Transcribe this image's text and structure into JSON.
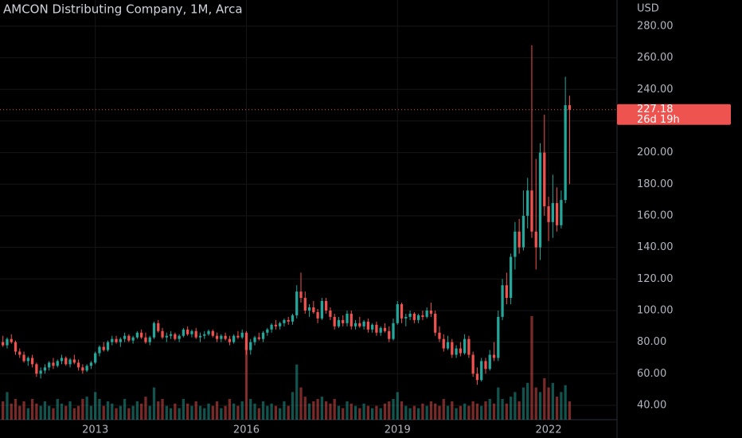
{
  "chart_data": {
    "type": "candlestick",
    "title": "AMCON Distributing Company, 1M, Arca",
    "currency": "USD",
    "countdown": "26d 19h",
    "up_color": "#26a69a",
    "down_color": "#ef5350",
    "grid": true,
    "ylim": [
      30.9,
      296.6
    ],
    "yticks": [
      {
        "value": 40,
        "label": "40.00"
      },
      {
        "value": 60,
        "label": "60.00"
      },
      {
        "value": 80,
        "label": "80.00"
      },
      {
        "value": 100,
        "label": "100.00"
      },
      {
        "value": 120,
        "label": "120.00"
      },
      {
        "value": 140,
        "label": "140.00"
      },
      {
        "value": 160,
        "label": "160.00"
      },
      {
        "value": 180,
        "label": "180.00"
      },
      {
        "value": 200,
        "label": "200.00"
      },
      {
        "value": 220,
        "label": "220.00"
      },
      {
        "value": 240,
        "label": "240.00"
      },
      {
        "value": 260,
        "label": "260.00"
      },
      {
        "value": 280,
        "label": "280.00"
      }
    ],
    "xlim": [
      0.3,
      147.3
    ],
    "xticks": [
      {
        "value": 23,
        "label": "2013"
      },
      {
        "value": 59,
        "label": "2016"
      },
      {
        "value": 95,
        "label": "2019"
      },
      {
        "value": 131,
        "label": "2022"
      }
    ],
    "candles": [
      [
        75,
        82,
        73,
        80,
        10
      ],
      [
        80,
        84,
        77,
        78,
        8
      ],
      [
        78,
        83,
        76,
        82,
        12
      ],
      [
        82,
        85,
        79,
        80,
        7
      ],
      [
        80,
        81,
        72,
        74,
        9
      ],
      [
        74,
        76,
        70,
        72,
        6
      ],
      [
        72,
        74,
        67,
        68,
        8
      ],
      [
        68,
        71,
        65,
        70,
        5
      ],
      [
        70,
        72,
        64,
        66,
        9
      ],
      [
        66,
        67,
        58,
        60,
        7
      ],
      [
        60,
        64,
        57,
        62,
        6
      ],
      [
        62,
        66,
        60,
        64,
        8
      ],
      [
        64,
        68,
        62,
        67,
        6
      ],
      [
        67,
        70,
        63,
        65,
        5
      ],
      [
        65,
        69,
        64,
        68,
        9
      ],
      [
        68,
        72,
        66,
        70,
        7
      ],
      [
        70,
        71,
        65,
        66,
        6
      ],
      [
        66,
        70,
        64,
        69,
        8
      ],
      [
        69,
        72,
        66,
        67,
        5
      ],
      [
        67,
        69,
        62,
        64,
        6
      ],
      [
        64,
        66,
        60,
        62,
        9
      ],
      [
        62,
        66,
        61,
        65,
        10
      ],
      [
        65,
        68,
        63,
        67,
        6
      ],
      [
        67,
        74,
        66,
        73,
        12
      ],
      [
        73,
        78,
        71,
        77,
        9
      ],
      [
        77,
        80,
        74,
        75,
        6
      ],
      [
        75,
        81,
        74,
        80,
        8
      ],
      [
        80,
        84,
        78,
        82,
        7
      ],
      [
        82,
        84,
        79,
        80,
        5
      ],
      [
        80,
        83,
        77,
        82,
        6
      ],
      [
        82,
        86,
        80,
        84,
        9
      ],
      [
        84,
        85,
        80,
        81,
        5
      ],
      [
        81,
        84,
        79,
        83,
        6
      ],
      [
        83,
        87,
        82,
        86,
        8
      ],
      [
        86,
        88,
        82,
        83,
        7
      ],
      [
        83,
        86,
        79,
        80,
        10
      ],
      [
        80,
        84,
        78,
        83,
        6
      ],
      [
        83,
        93,
        82,
        92,
        14
      ],
      [
        92,
        94,
        86,
        87,
        8
      ],
      [
        87,
        89,
        82,
        83,
        9
      ],
      [
        83,
        86,
        80,
        84,
        6
      ],
      [
        84,
        87,
        82,
        85,
        5
      ],
      [
        85,
        86,
        81,
        82,
        7
      ],
      [
        82,
        85,
        80,
        84,
        5
      ],
      [
        84,
        89,
        83,
        88,
        9
      ],
      [
        88,
        90,
        84,
        85,
        7
      ],
      [
        85,
        88,
        83,
        87,
        6
      ],
      [
        87,
        89,
        82,
        83,
        8
      ],
      [
        83,
        86,
        80,
        84,
        6
      ],
      [
        84,
        87,
        82,
        85,
        5
      ],
      [
        85,
        88,
        84,
        87,
        7
      ],
      [
        87,
        88,
        83,
        84,
        6
      ],
      [
        84,
        86,
        80,
        82,
        8
      ],
      [
        82,
        85,
        80,
        84,
        5
      ],
      [
        84,
        86,
        81,
        82,
        6
      ],
      [
        82,
        84,
        78,
        80,
        9
      ],
      [
        80,
        85,
        79,
        84,
        7
      ],
      [
        84,
        87,
        82,
        83,
        6
      ],
      [
        83,
        88,
        82,
        86,
        8
      ],
      [
        86,
        87,
        72,
        75,
        33
      ],
      [
        75,
        82,
        72,
        80,
        9
      ],
      [
        80,
        84,
        78,
        83,
        7
      ],
      [
        83,
        86,
        81,
        82,
        5
      ],
      [
        82,
        87,
        80,
        86,
        8
      ],
      [
        86,
        89,
        84,
        88,
        6
      ],
      [
        88,
        92,
        86,
        91,
        7
      ],
      [
        91,
        94,
        88,
        90,
        6
      ],
      [
        90,
        93,
        88,
        92,
        5
      ],
      [
        92,
        95,
        90,
        94,
        8
      ],
      [
        94,
        96,
        91,
        93,
        6
      ],
      [
        93,
        98,
        91,
        97,
        12
      ],
      [
        97,
        116,
        95,
        112,
        24
      ],
      [
        112,
        124,
        105,
        108,
        14
      ],
      [
        108,
        112,
        98,
        100,
        10
      ],
      [
        100,
        104,
        96,
        102,
        7
      ],
      [
        102,
        106,
        98,
        99,
        8
      ],
      [
        99,
        101,
        92,
        95,
        9
      ],
      [
        95,
        108,
        94,
        106,
        10
      ],
      [
        106,
        108,
        98,
        100,
        8
      ],
      [
        100,
        102,
        94,
        96,
        7
      ],
      [
        96,
        98,
        88,
        90,
        9
      ],
      [
        90,
        96,
        89,
        94,
        6
      ],
      [
        94,
        97,
        90,
        92,
        5
      ],
      [
        92,
        100,
        90,
        98,
        8
      ],
      [
        98,
        100,
        88,
        90,
        7
      ],
      [
        90,
        94,
        88,
        92,
        6
      ],
      [
        92,
        96,
        89,
        90,
        5
      ],
      [
        90,
        94,
        88,
        93,
        7
      ],
      [
        93,
        95,
        86,
        88,
        6
      ],
      [
        88,
        92,
        86,
        91,
        5
      ],
      [
        91,
        93,
        84,
        86,
        6
      ],
      [
        86,
        90,
        84,
        89,
        5
      ],
      [
        89,
        92,
        86,
        87,
        7
      ],
      [
        87,
        90,
        80,
        82,
        8
      ],
      [
        82,
        95,
        81,
        92,
        9
      ],
      [
        92,
        106,
        91,
        104,
        12
      ],
      [
        104,
        105,
        92,
        95,
        8
      ],
      [
        95,
        98,
        90,
        96,
        6
      ],
      [
        96,
        100,
        94,
        98,
        5
      ],
      [
        98,
        99,
        92,
        94,
        6
      ],
      [
        94,
        98,
        92,
        97,
        5
      ],
      [
        97,
        100,
        94,
        96,
        7
      ],
      [
        96,
        102,
        95,
        100,
        6
      ],
      [
        100,
        105,
        96,
        98,
        8
      ],
      [
        98,
        100,
        84,
        86,
        7
      ],
      [
        86,
        90,
        80,
        82,
        6
      ],
      [
        82,
        85,
        74,
        76,
        9
      ],
      [
        76,
        84,
        75,
        80,
        6
      ],
      [
        80,
        82,
        70,
        72,
        8
      ],
      [
        72,
        78,
        70,
        76,
        5
      ],
      [
        76,
        80,
        71,
        73,
        6
      ],
      [
        73,
        85,
        72,
        82,
        7
      ],
      [
        82,
        84,
        70,
        72,
        6
      ],
      [
        72,
        74,
        58,
        60,
        8
      ],
      [
        60,
        64,
        53,
        56,
        7
      ],
      [
        56,
        70,
        55,
        68,
        6
      ],
      [
        68,
        70,
        60,
        63,
        8
      ],
      [
        63,
        75,
        62,
        72,
        9
      ],
      [
        72,
        80,
        68,
        70,
        7
      ],
      [
        70,
        100,
        68,
        96,
        14
      ],
      [
        96,
        120,
        94,
        116,
        9
      ],
      [
        116,
        124,
        104,
        108,
        7
      ],
      [
        108,
        136,
        104,
        134,
        10
      ],
      [
        134,
        156,
        126,
        150,
        12
      ],
      [
        150,
        158,
        136,
        140,
        8
      ],
      [
        140,
        176,
        138,
        160,
        14
      ],
      [
        160,
        184,
        152,
        176,
        16
      ],
      [
        176,
        268,
        146,
        150,
        45
      ],
      [
        150,
        196,
        126,
        140,
        14
      ],
      [
        140,
        206,
        132,
        200,
        12
      ],
      [
        200,
        224,
        160,
        166,
        18
      ],
      [
        166,
        172,
        144,
        156,
        14
      ],
      [
        156,
        186,
        146,
        168,
        16
      ],
      [
        168,
        178,
        150,
        154,
        10
      ],
      [
        154,
        176,
        152,
        170,
        12
      ],
      [
        170,
        248,
        168,
        230,
        15
      ],
      [
        230,
        236,
        180,
        227.18,
        8
      ]
    ]
  }
}
